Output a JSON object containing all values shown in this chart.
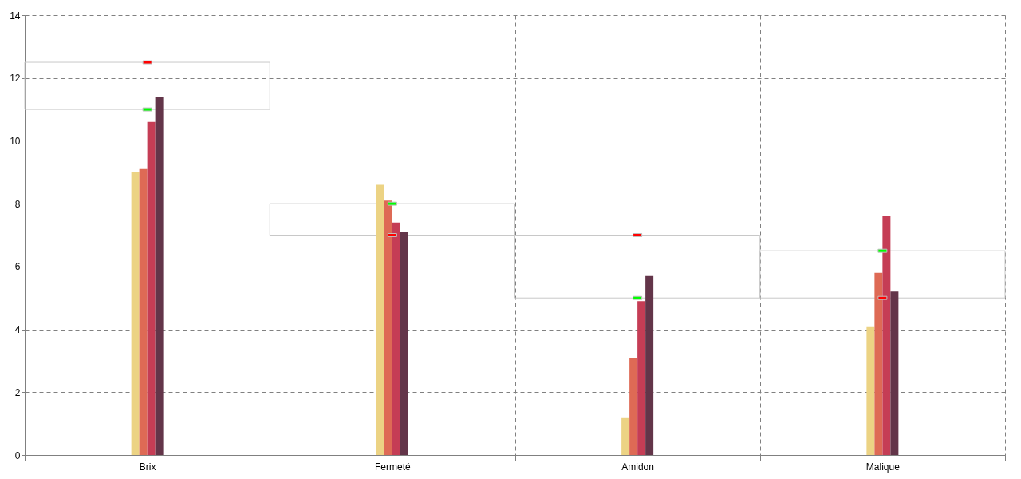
{
  "chart_data": {
    "type": "bar",
    "categories": [
      "Brix",
      "Fermeté",
      "Amidon",
      "Malique"
    ],
    "series": [
      {
        "color": "#ecd384",
        "values": [
          9.0,
          8.6,
          1.2,
          4.1
        ]
      },
      {
        "color": "#de6a55",
        "values": [
          9.1,
          8.1,
          3.1,
          5.8
        ]
      },
      {
        "color": "#c53d55",
        "values": [
          10.6,
          7.4,
          4.9,
          7.6
        ]
      },
      {
        "color": "#633549",
        "values": [
          11.4,
          7.1,
          5.7,
          5.2
        ]
      },
      {
        "type": "bar",
        "color": "#c8c8c8",
        "base": [
          11,
          7,
          5,
          5
        ],
        "values": [
          1.5,
          1,
          2,
          1.5
        ]
      },
      {
        "type": "scatter",
        "color": "#ff0000",
        "x": [
          "Brix",
          "Fermeté",
          "Amidon",
          "Malique"
        ],
        "values": [
          12.5,
          7,
          7,
          5
        ]
      },
      {
        "type": "scatter",
        "color": "#00ff00",
        "x": [
          "Brix",
          "Fermeté",
          "Amidon",
          "Malique"
        ],
        "values": [
          11,
          8,
          5,
          6.5
        ]
      }
    ],
    "ylim": [
      0,
      14
    ],
    "yticks": [
      0,
      2,
      4,
      6,
      8,
      10,
      12,
      14
    ],
    "grid": true
  }
}
